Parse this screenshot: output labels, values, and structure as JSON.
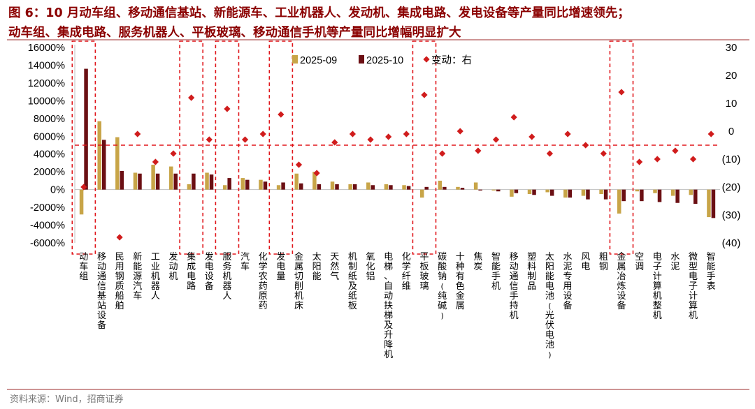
{
  "title": {
    "line1": "图 6：10 月动车组、移动通信基站、新能源车、工业机器人、发动机、集成电路、发电设备等产量同比增速领先；",
    "line2": "动车组、集成电路、服务机器人、平板玻璃、移动通信手机等产量同比增幅明显扩大"
  },
  "source": "资料来源：Wind，招商证券",
  "colors": {
    "title": "#8b0000",
    "series_sep": "#c8a548",
    "series_oct": "#6b0f13",
    "change": "#d01c1c",
    "highlight": "#e0161b",
    "axis_line": "#bfbfbf",
    "frame": "#9e2b2b"
  },
  "chart_data": {
    "type": "bar",
    "categories": [
      "动车组",
      "移动通信基站设备",
      "民用钢质船舶",
      "新能源汽车",
      "工业机器人",
      "发动机",
      "集成电路",
      "发电设备",
      "服务机器人",
      "汽车",
      "化学农药原药",
      "发电量",
      "金属切削机床",
      "太阳能",
      "天然气",
      "机制纸及纸板",
      "氧化铝",
      "电梯、自动扶梯及升降机",
      "化学纤维",
      "平板玻璃",
      "碳酸钠(纯碱)",
      "十种有色金属",
      "焦炭",
      "智能手机",
      "移动通信手持机",
      "塑料制品",
      "太阳能电池(光伏电池)",
      "水泥专用设备",
      "风电",
      "粗钢",
      "金属冶炼设备",
      "空调",
      "电子计算机整机",
      "水泥",
      "微型电子计算机",
      "智能手表"
    ],
    "series": [
      {
        "name": "2025-09",
        "axis": "left",
        "type": "bar",
        "values": [
          -2800,
          7700,
          5900,
          1900,
          2800,
          2600,
          600,
          1900,
          500,
          1300,
          1100,
          500,
          1800,
          2000,
          900,
          600,
          800,
          600,
          500,
          -900,
          1000,
          300,
          800,
          -100,
          -800,
          -500,
          -300,
          -900,
          -700,
          -500,
          -2700,
          -200,
          -400,
          -700,
          -600,
          -3100
        ]
      },
      {
        "name": "2025-10",
        "axis": "left",
        "type": "bar",
        "values": [
          13600,
          5600,
          2100,
          1800,
          1800,
          1800,
          1800,
          1700,
          1300,
          1100,
          900,
          800,
          700,
          600,
          600,
          600,
          500,
          500,
          400,
          300,
          300,
          200,
          -100,
          -200,
          -400,
          -600,
          -700,
          -900,
          -1100,
          -1100,
          -1300,
          -1300,
          -1400,
          -1500,
          -1600,
          -3200
        ]
      },
      {
        "name": "变动：右",
        "axis": "right",
        "type": "scatter",
        "values": [
          -20,
          null,
          -38,
          -1,
          -11,
          -8,
          12,
          -3,
          8,
          -3,
          -1,
          6,
          -12,
          -15,
          -4,
          -1,
          -3,
          -2,
          -1,
          13,
          -8,
          0,
          -7,
          -3,
          5,
          -2,
          -8,
          -1,
          -5,
          -8,
          14,
          -11,
          -10,
          -7,
          -10,
          -1
        ]
      }
    ],
    "y_left": {
      "ticks": [
        "-6000%",
        "-4000%",
        "-2000%",
        "0%",
        "2000%",
        "4000%",
        "6000%",
        "8000%",
        "10000%",
        "12000%",
        "14000%",
        "16000%"
      ],
      "ylim": [
        -6000,
        16000
      ]
    },
    "y_right": {
      "ticks": [
        "(40)",
        "(30)",
        "(20)",
        "(10)",
        "0",
        "10",
        "20",
        "30"
      ],
      "ylim": [
        -40,
        30
      ]
    },
    "highlighted": [
      "动车组",
      "集成电路",
      "服务机器人",
      "发电量",
      "平板玻璃",
      "金属冶炼设备"
    ],
    "reference_line": -5,
    "legend_position": "top-center",
    "grid": false,
    "xlabel": "",
    "ylabel": ""
  }
}
